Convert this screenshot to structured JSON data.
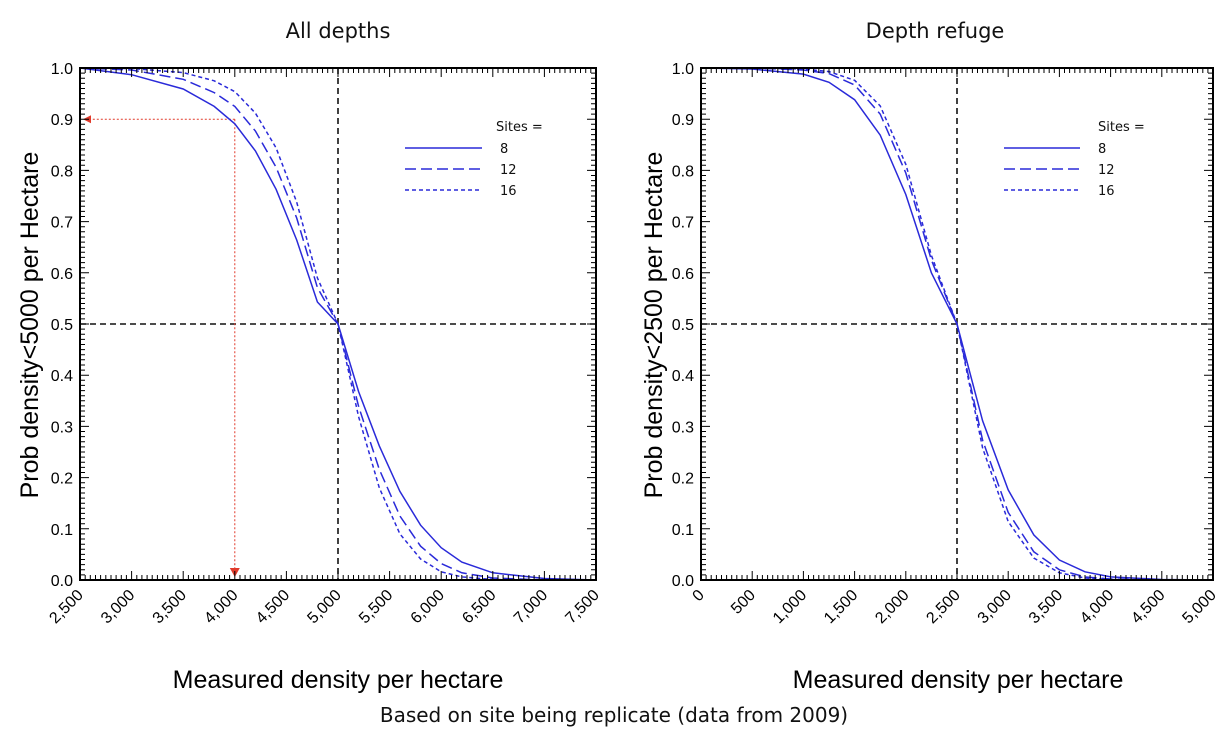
{
  "footer": "Based on site being replicate (data from 2009)",
  "colors": {
    "curve": "#2a2ad9",
    "guide": "#e03a2a",
    "axis": "#000000"
  },
  "chart_data": [
    {
      "type": "line",
      "title": "All depths",
      "xlabel": "Measured density per hectare",
      "ylabel": "Prob density<5000 per Hectare",
      "xlim": [
        2500,
        7500
      ],
      "ylim": [
        0,
        1
      ],
      "xticks": [
        "2,500",
        "3,000",
        "3,500",
        "4,000",
        "4,500",
        "5,000",
        "5,500",
        "6,000",
        "6,500",
        "7,000",
        "7,500"
      ],
      "yticks": [
        "0.0",
        "0.1",
        "0.2",
        "0.3",
        "0.4",
        "0.5",
        "0.6",
        "0.7",
        "0.8",
        "0.9",
        "1.0"
      ],
      "legend_title": "Sites =",
      "legend_position": "top-right",
      "reference_lines": {
        "x": 5000,
        "y": 0.5
      },
      "annotation": {
        "x": 4000,
        "y": 0.9
      },
      "x": [
        2500,
        3000,
        3500,
        3800,
        4000,
        4200,
        4400,
        4600,
        4800,
        5000,
        5200,
        5400,
        5600,
        5800,
        6000,
        6200,
        6500,
        7000,
        7500
      ],
      "series": [
        {
          "name": "8",
          "style": "solid",
          "values": [
            1.0,
            0.987,
            0.959,
            0.925,
            0.891,
            0.838,
            0.763,
            0.664,
            0.543,
            0.5,
            0.368,
            0.262,
            0.173,
            0.107,
            0.063,
            0.035,
            0.014,
            0.003,
            0.0
          ]
        },
        {
          "name": "12",
          "style": "dashed",
          "values": [
            1.0,
            0.996,
            0.978,
            0.952,
            0.925,
            0.877,
            0.806,
            0.707,
            0.571,
            0.5,
            0.339,
            0.216,
            0.125,
            0.066,
            0.032,
            0.014,
            0.004,
            0.0,
            0.0
          ]
        },
        {
          "name": "16",
          "style": "dotted",
          "values": [
            1.0,
            0.999,
            0.991,
            0.975,
            0.954,
            0.912,
            0.844,
            0.738,
            0.59,
            0.5,
            0.319,
            0.18,
            0.09,
            0.041,
            0.016,
            0.006,
            0.001,
            0.0,
            0.0
          ]
        }
      ]
    },
    {
      "type": "line",
      "title": "Depth refuge",
      "xlabel": "Measured density per hectare",
      "ylabel": "Prob density<2500 per Hectare",
      "xlim": [
        0,
        5000
      ],
      "ylim": [
        0,
        1
      ],
      "xticks": [
        "0",
        "500",
        "1,000",
        "1,500",
        "2,000",
        "2,500",
        "3,000",
        "3,500",
        "4,000",
        "4,500",
        "5,000"
      ],
      "yticks": [
        "0.0",
        "0.1",
        "0.2",
        "0.3",
        "0.4",
        "0.5",
        "0.6",
        "0.7",
        "0.8",
        "0.9",
        "1.0"
      ],
      "legend_title": "Sites =",
      "legend_position": "top-right",
      "reference_lines": {
        "x": 2500,
        "y": 0.5
      },
      "x": [
        0,
        500,
        1000,
        1250,
        1500,
        1750,
        2000,
        2250,
        2500,
        2750,
        3000,
        3250,
        3500,
        3750,
        4000,
        4500,
        5000
      ],
      "series": [
        {
          "name": "8",
          "style": "solid",
          "values": [
            1.0,
            0.998,
            0.988,
            0.972,
            0.938,
            0.869,
            0.753,
            0.6,
            0.5,
            0.311,
            0.176,
            0.088,
            0.039,
            0.016,
            0.006,
            0.001,
            0.0
          ]
        },
        {
          "name": "12",
          "style": "dashed",
          "values": [
            1.0,
            1.0,
            0.996,
            0.989,
            0.967,
            0.91,
            0.795,
            0.625,
            0.5,
            0.273,
            0.132,
            0.055,
            0.02,
            0.006,
            0.002,
            0.0,
            0.0
          ]
        },
        {
          "name": "16",
          "style": "dotted",
          "values": [
            1.0,
            1.0,
            0.998,
            0.993,
            0.976,
            0.926,
            0.812,
            0.634,
            0.5,
            0.258,
            0.114,
            0.043,
            0.014,
            0.004,
            0.001,
            0.0,
            0.0
          ]
        }
      ]
    }
  ]
}
